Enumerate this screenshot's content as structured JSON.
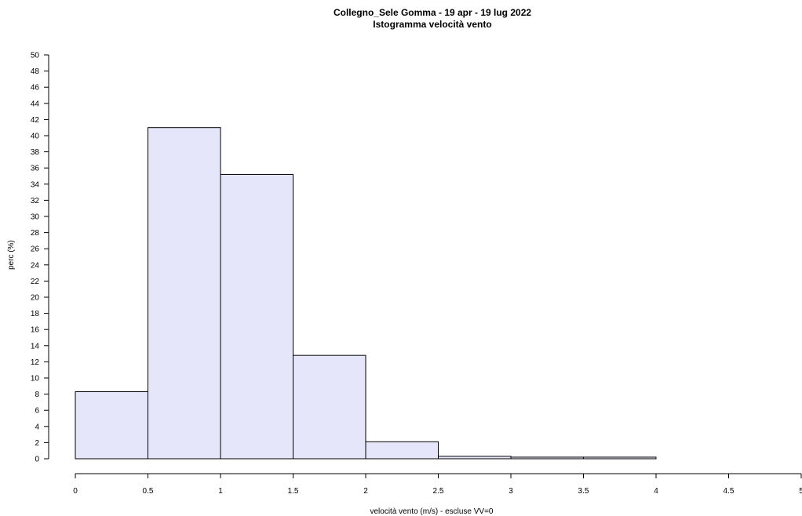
{
  "chart_data": {
    "type": "bar",
    "title": "Collegno_Sele Gomma  -  19 apr - 19 lug 2022",
    "subtitle": "Istogramma velocità vento",
    "xlabel": "velocità vento (m/s) - escluse VV=0",
    "ylabel": "perc (%)",
    "bins": [
      {
        "from": 0.0,
        "to": 0.5,
        "value": 8.3
      },
      {
        "from": 0.5,
        "to": 1.0,
        "value": 41.0
      },
      {
        "from": 1.0,
        "to": 1.5,
        "value": 35.2
      },
      {
        "from": 1.5,
        "to": 2.0,
        "value": 12.8
      },
      {
        "from": 2.0,
        "to": 2.5,
        "value": 2.1
      },
      {
        "from": 2.5,
        "to": 3.0,
        "value": 0.3
      },
      {
        "from": 3.0,
        "to": 3.5,
        "value": 0.2
      },
      {
        "from": 3.5,
        "to": 4.0,
        "value": 0.2
      },
      {
        "from": 4.0,
        "to": 4.5,
        "value": 0.0
      },
      {
        "from": 4.5,
        "to": 5.0,
        "value": 0.0
      }
    ],
    "xlim": [
      0,
      5
    ],
    "ylim": [
      0,
      50
    ],
    "x_ticks": [
      "0",
      "0.5",
      "1",
      "1.5",
      "2",
      "2.5",
      "3",
      "3.5",
      "4",
      "4.5",
      "5"
    ],
    "y_ticks": [
      "0",
      "2",
      "4",
      "6",
      "8",
      "10",
      "12",
      "14",
      "16",
      "18",
      "20",
      "22",
      "24",
      "26",
      "28",
      "30",
      "32",
      "34",
      "36",
      "38",
      "40",
      "42",
      "44",
      "46",
      "48",
      "50"
    ],
    "bar_fill": "#e6e6fa",
    "bar_stroke": "#000000",
    "grid": false,
    "legend": "none"
  }
}
